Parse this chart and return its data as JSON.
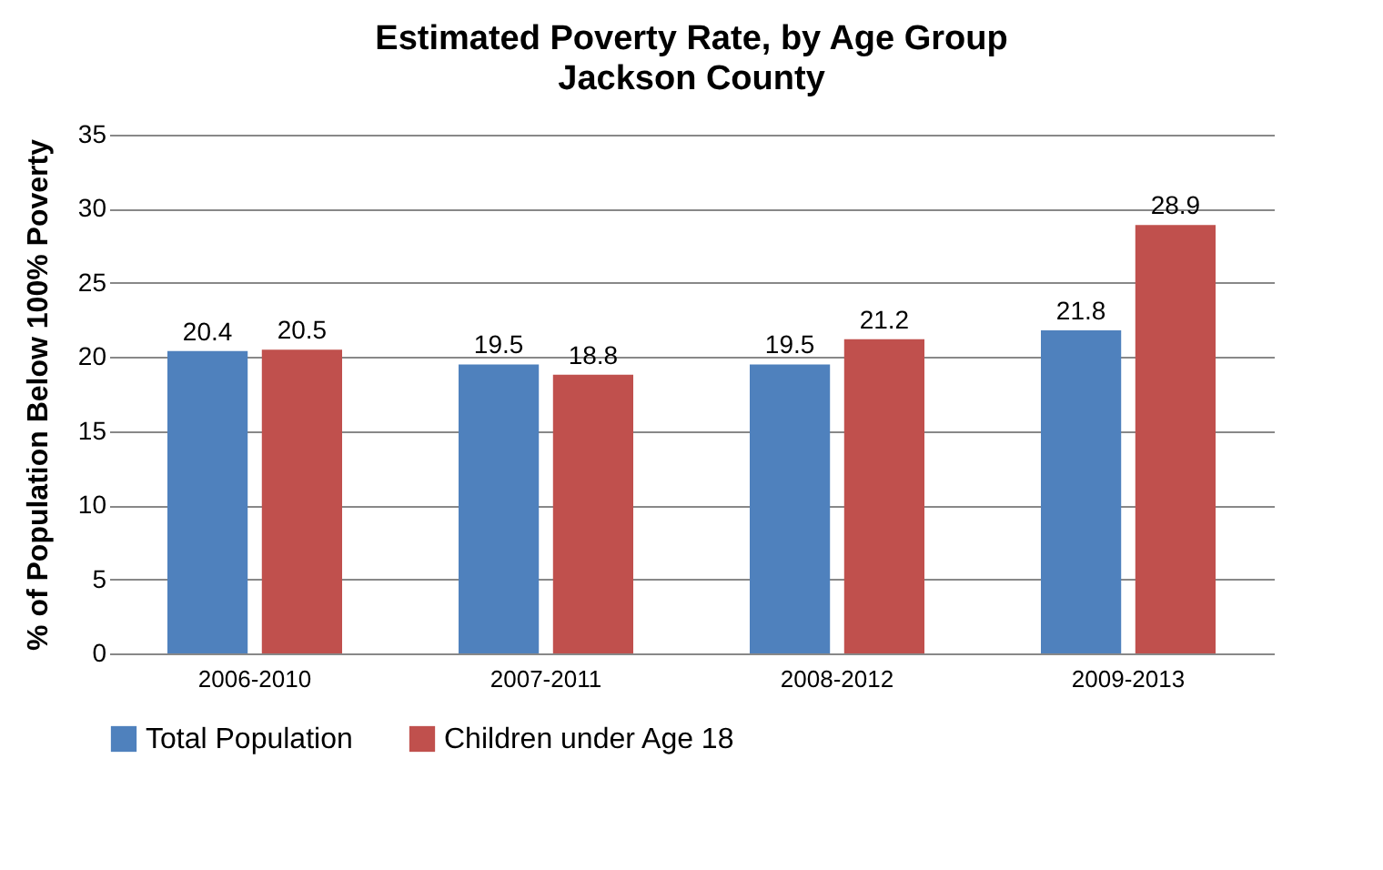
{
  "chart_data": {
    "type": "bar",
    "title": "Estimated Poverty Rate, by Age Group",
    "subtitle": "Jackson County",
    "ylabel": "% of Population Below 100% Poverty",
    "categories": [
      "2006-2010",
      "2007-2011",
      "2008-2012",
      "2009-2013"
    ],
    "series": [
      {
        "name": "Total Population",
        "color": "#4f81bd",
        "values": [
          20.4,
          19.5,
          19.5,
          21.8
        ]
      },
      {
        "name": "Children under Age 18",
        "color": "#c0504d",
        "values": [
          20.5,
          18.8,
          21.2,
          28.9
        ]
      }
    ],
    "ylim": [
      0,
      35
    ],
    "yticks": [
      0,
      5,
      10,
      15,
      20,
      25,
      30,
      35
    ],
    "grid": "y",
    "legend": "bottom",
    "data_labels": true
  }
}
